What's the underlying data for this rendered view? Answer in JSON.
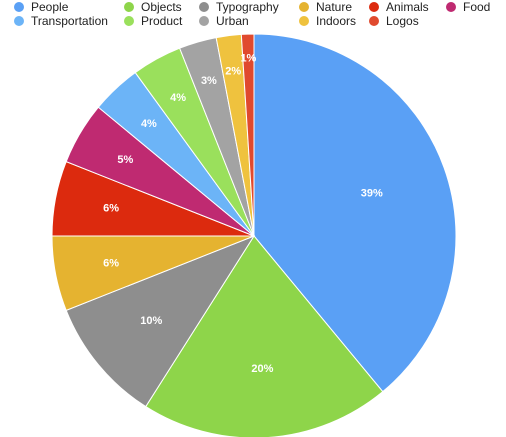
{
  "chart_data": {
    "type": "pie",
    "legend_placement": "top",
    "start_angle_deg": 0,
    "direction": "clockwise",
    "slices": [
      {
        "label": "People",
        "value": 39,
        "display": "39%",
        "color": "#5AA0F5"
      },
      {
        "label": "Objects",
        "value": 20,
        "display": "20%",
        "color": "#8ED54A"
      },
      {
        "label": "Typography",
        "value": 10,
        "display": "10%",
        "color": "#8E8E8E"
      },
      {
        "label": "Nature",
        "value": 6,
        "display": "6%",
        "color": "#E5B330"
      },
      {
        "label": "Animals",
        "value": 6,
        "display": "6%",
        "color": "#DC2A0E"
      },
      {
        "label": "Food",
        "value": 5,
        "display": "5%",
        "color": "#BF2A71"
      },
      {
        "label": "Transportation",
        "value": 4,
        "display": "4%",
        "color": "#6CB4F7"
      },
      {
        "label": "Product",
        "value": 4,
        "display": "4%",
        "color": "#9AE05C"
      },
      {
        "label": "Urban",
        "value": 3,
        "display": "3%",
        "color": "#A3A3A3"
      },
      {
        "label": "Indoors",
        "value": 2,
        "display": "2%",
        "color": "#EFC23E"
      },
      {
        "label": "Logos",
        "value": 1,
        "display": "1%",
        "color": "#E04A2E"
      }
    ]
  }
}
